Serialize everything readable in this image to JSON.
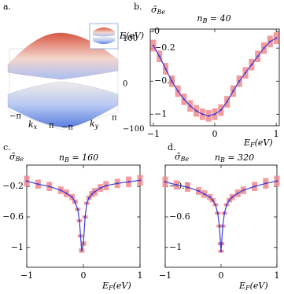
{
  "chart_data": [
    {
      "type": "surface",
      "panel_label": "a.",
      "zlabel": "E(eV)",
      "xlabel": "kx",
      "ylabel": "ky",
      "xlim": [
        -3.1416,
        3.1416
      ],
      "ylim": [
        -3.1416,
        3.1416
      ],
      "zlim": [
        -130,
        130
      ],
      "xticks": [
        {
          "value": -3.1416,
          "label": "−π"
        },
        {
          "value": 3.1416,
          "label": "π"
        }
      ],
      "yticks": [
        {
          "value": -3.1416,
          "label": "−π"
        },
        {
          "value": 3.1416,
          "label": "π"
        }
      ],
      "zticks": [
        100,
        0,
        {
          "value": -100,
          "label": "−100"
        }
      ]
    },
    {
      "type": "line",
      "panel_label": "b.",
      "title": "nB = 40",
      "ylabel": "σ̃Be",
      "xlabel": "EF(eV)",
      "color": "#3b3bd6",
      "error_color": "#f28a8c",
      "x": [
        -1,
        -0.9,
        -0.8,
        -0.7,
        -0.6,
        -0.5,
        -0.4,
        -0.3,
        -0.2,
        -0.1,
        0,
        0.1,
        0.2,
        0.3,
        0.4,
        0.5,
        0.6,
        0.7,
        0.8,
        0.9,
        1
      ],
      "values": [
        -0.17,
        -0.3,
        -0.45,
        -0.6,
        -0.72,
        -0.82,
        -0.9,
        -0.96,
        -1.0,
        -1.02,
        -1.0,
        -0.95,
        -0.85,
        -0.72,
        -0.6,
        -0.5,
        -0.4,
        -0.3,
        -0.2,
        -0.12,
        -0.08
      ],
      "errors": [
        0.07,
        0.07,
        0.07,
        0.07,
        0.07,
        0.07,
        0.07,
        0.07,
        0.07,
        0.07,
        0.07,
        0.07,
        0.07,
        0.07,
        0.07,
        0.07,
        0.07,
        0.07,
        0.07,
        0.07,
        0.07
      ],
      "xlim": [
        -1.05,
        1.05
      ],
      "ylim": [
        -1.14,
        0.03
      ],
      "xticks": [
        {
          "value": -1,
          "label": "−1"
        },
        0,
        1
      ],
      "yticks": [
        0,
        {
          "value": -0.2,
          "label": "−0.2"
        },
        {
          "value": -0.6,
          "label": "−0.6"
        },
        {
          "value": -1,
          "label": "−1"
        }
      ]
    },
    {
      "type": "line",
      "panel_label": "c.",
      "title": "nB = 160",
      "ylabel": "σ̃Be",
      "xlabel": "EF(eV)",
      "color": "#3b3bd6",
      "error_color": "#f28a8c",
      "x": [
        -1,
        -0.8,
        -0.6,
        -0.4,
        -0.3,
        -0.2,
        -0.15,
        -0.1,
        -0.07,
        -0.05,
        -0.03,
        0,
        0.03,
        0.06,
        0.1,
        0.15,
        0.2,
        0.3,
        0.4,
        0.6,
        0.8,
        1
      ],
      "values": [
        -0.13,
        -0.17,
        -0.2,
        -0.25,
        -0.29,
        -0.34,
        -0.4,
        -0.5,
        -0.65,
        -0.85,
        -1.04,
        -0.95,
        -0.6,
        -0.42,
        -0.35,
        -0.3,
        -0.27,
        -0.22,
        -0.19,
        -0.16,
        -0.14,
        -0.12
      ],
      "errors": [
        0.07,
        0.06,
        0.06,
        0.05,
        0.05,
        0.04,
        0.03,
        0.02,
        0.02,
        0.02,
        0.03,
        0.03,
        0.02,
        0.02,
        0.03,
        0.04,
        0.05,
        0.05,
        0.06,
        0.06,
        0.07,
        0.07
      ],
      "xlim": [
        -1,
        1
      ],
      "ylim": [
        -1.26,
        0.08
      ],
      "xticks": [
        {
          "value": -1,
          "label": "−1"
        },
        0,
        1
      ],
      "yticks": [
        {
          "value": -0.2,
          "label": "−0.2"
        },
        {
          "value": -0.6,
          "label": "−0.6"
        },
        {
          "value": -1,
          "label": "−1"
        }
      ]
    },
    {
      "type": "line",
      "panel_label": "d.",
      "title": "nB = 320",
      "ylabel": "σ̃Be",
      "xlabel": "EF(eV)",
      "color": "#3b3bd6",
      "error_color": "#f28a8c",
      "x": [
        -1,
        -0.8,
        -0.6,
        -0.4,
        -0.3,
        -0.2,
        -0.15,
        -0.1,
        -0.06,
        -0.03,
        -0.01,
        0,
        0.01,
        0.03,
        0.06,
        0.1,
        0.15,
        0.2,
        0.3,
        0.4,
        0.6,
        0.8,
        1
      ],
      "values": [
        -0.14,
        -0.18,
        -0.21,
        -0.26,
        -0.3,
        -0.34,
        -0.38,
        -0.44,
        -0.55,
        -0.72,
        -0.95,
        -1.05,
        -0.95,
        -0.72,
        -0.55,
        -0.44,
        -0.38,
        -0.34,
        -0.29,
        -0.25,
        -0.2,
        -0.16,
        -0.13
      ],
      "errors": [
        0.07,
        0.06,
        0.06,
        0.05,
        0.05,
        0.04,
        0.03,
        0.02,
        0.02,
        0.02,
        0.02,
        0.02,
        0.02,
        0.02,
        0.02,
        0.02,
        0.03,
        0.04,
        0.05,
        0.05,
        0.06,
        0.07,
        0.07
      ],
      "xlim": [
        -1,
        1
      ],
      "ylim": [
        -1.26,
        0.08
      ],
      "xticks": [
        {
          "value": -1,
          "label": "−1"
        },
        0,
        1
      ],
      "yticks": [
        {
          "value": -0.2,
          "label": "−0.2"
        },
        {
          "value": -0.6,
          "label": "−0.6"
        },
        {
          "value": -1,
          "label": "−1"
        }
      ]
    }
  ]
}
